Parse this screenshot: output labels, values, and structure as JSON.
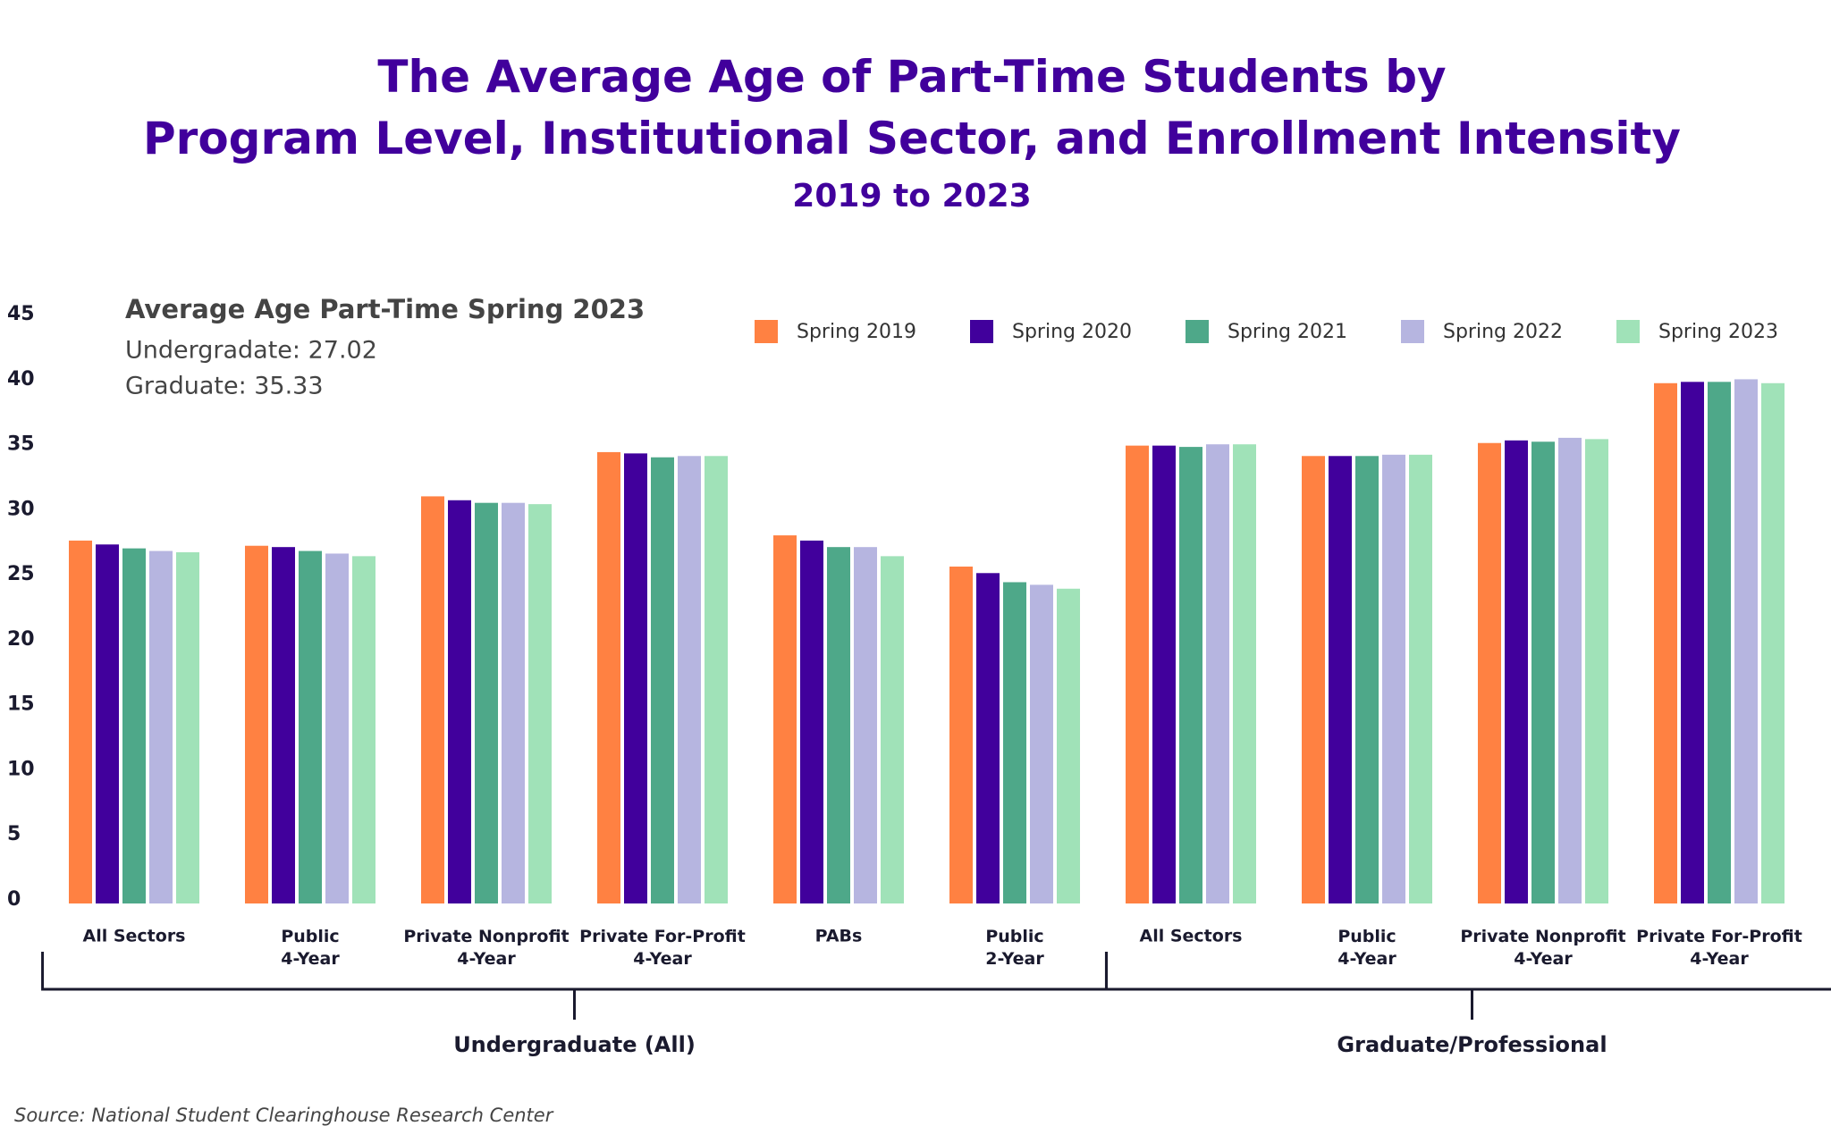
{
  "chart_data": {
    "type": "bar",
    "title": "The Average Age of Part-Time Students by\nProgram Level, Institutional Sector, and Enrollment Intensity",
    "subtitle": "2019 to 2023",
    "annotation": {
      "heading": "Average Age Part-Time Spring 2023",
      "lines": [
        "Undergradate: 27.02",
        "Graduate: 35.33"
      ]
    },
    "groups": [
      {
        "name": "Undergraduate (All)",
        "categories": [
          "All Sectors",
          "Public\n4-Year",
          "Private Nonprofit\n4-Year",
          "Private For-Profit\n4-Year",
          "PABs",
          "Public\n2-Year"
        ]
      },
      {
        "name": "Graduate/Professional",
        "categories": [
          "All Sectors",
          "Public\n4-Year",
          "Private Nonprofit\n4-Year",
          "Private For-Profit\n4-Year"
        ]
      }
    ],
    "series": [
      {
        "name": "Spring 2019",
        "color": "#ff8142",
        "values": [
          27.9,
          27.5,
          31.3,
          34.7,
          28.3,
          25.9,
          35.2,
          34.4,
          35.4,
          40.0
        ]
      },
      {
        "name": "Spring 2020",
        "color": "#41009c",
        "values": [
          27.6,
          27.4,
          31.0,
          34.6,
          27.9,
          25.4,
          35.2,
          34.4,
          35.6,
          40.1
        ]
      },
      {
        "name": "Spring 2021",
        "color": "#4ea889",
        "values": [
          27.3,
          27.1,
          30.8,
          34.3,
          27.4,
          24.7,
          35.1,
          34.4,
          35.5,
          40.1
        ]
      },
      {
        "name": "Spring 2022",
        "color": "#b6b5e0",
        "values": [
          27.1,
          26.9,
          30.8,
          34.4,
          27.4,
          24.5,
          35.3,
          34.5,
          35.8,
          40.3
        ]
      },
      {
        "name": "Spring 2023",
        "color": "#a0e2b8",
        "values": [
          27.0,
          26.7,
          30.7,
          34.4,
          26.7,
          24.2,
          35.3,
          34.5,
          35.7,
          40.0
        ]
      }
    ],
    "ylim": [
      0,
      45
    ],
    "yticks": [
      0,
      5,
      10,
      15,
      20,
      25,
      30,
      35,
      40,
      45
    ],
    "source": "Source: National Student Clearinghouse Research Center"
  }
}
